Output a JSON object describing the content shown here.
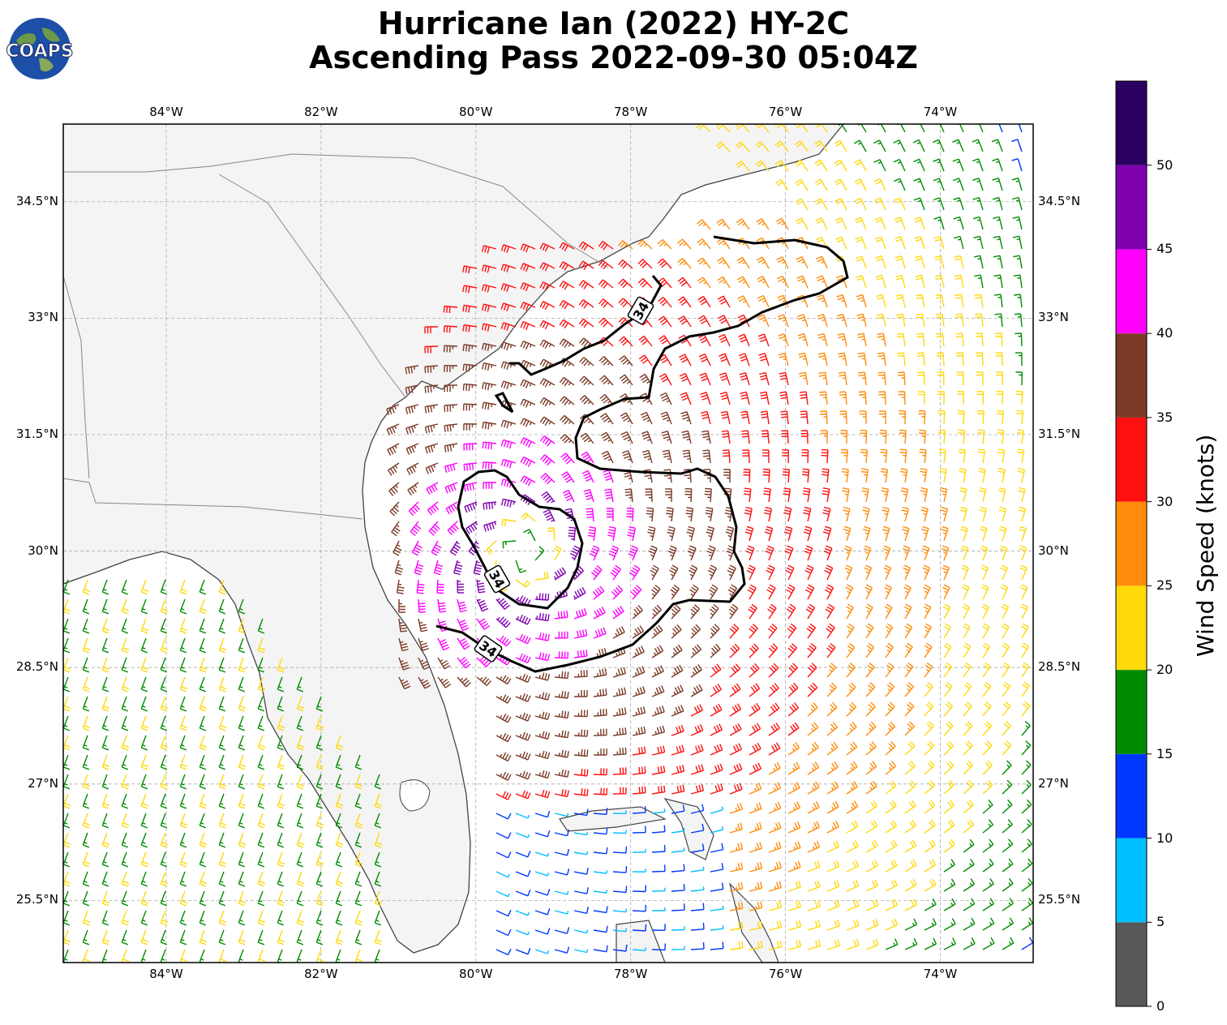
{
  "header": {
    "title_line1": "Hurricane Ian (2022) HY-2C",
    "title_line2": "Ascending Pass 2022-09-30 05:04Z",
    "logo_text": "COAPS",
    "logo_icon": "globe-icon"
  },
  "map": {
    "lon_range": [
      -85.33,
      -72.8
    ],
    "lat_range": [
      24.7,
      35.5
    ],
    "lon_ticks": [
      "84°W",
      "82°W",
      "80°W",
      "78°W",
      "76°W",
      "74°W"
    ],
    "lon_values": [
      -84,
      -82,
      -80,
      -78,
      -76,
      -74
    ],
    "lat_ticks": [
      "34.5°N",
      "33°N",
      "31.5°N",
      "30°N",
      "28.5°N",
      "27°N",
      "25.5°N"
    ],
    "lat_values": [
      34.5,
      33,
      31.5,
      30,
      28.5,
      27,
      25.5
    ],
    "gridlines": true,
    "land_color": "#f4f4f4",
    "ocean_color": "#ffffff",
    "coast_color": "#444444",
    "border_color": "#888888",
    "contour": {
      "level_label": "34",
      "color": "#000000",
      "labels": [
        "34",
        "34",
        "34"
      ]
    },
    "storm_center": {
      "lon": -79.4,
      "lat": 29.95
    }
  },
  "colorbar": {
    "label": "Wind Speed (knots)",
    "tick_labels": [
      "0",
      "5",
      "10",
      "15",
      "20",
      "25",
      "30",
      "35",
      "40",
      "45",
      "50"
    ],
    "bins": [
      {
        "from": 0,
        "to": 5,
        "color": "#585858"
      },
      {
        "from": 5,
        "to": 10,
        "color": "#00bfff"
      },
      {
        "from": 10,
        "to": 15,
        "color": "#0038ff"
      },
      {
        "from": 15,
        "to": 20,
        "color": "#008c00"
      },
      {
        "from": 20,
        "to": 25,
        "color": "#ffd90a"
      },
      {
        "from": 25,
        "to": 30,
        "color": "#ff8c0a"
      },
      {
        "from": 30,
        "to": 35,
        "color": "#ff0f0f"
      },
      {
        "from": 35,
        "to": 40,
        "color": "#7b3a26"
      },
      {
        "from": 40,
        "to": 45,
        "color": "#ff00ff"
      },
      {
        "from": 45,
        "to": 50,
        "color": "#8000b0"
      },
      {
        "from": 50,
        "to": 55,
        "color": "#2a0060"
      }
    ]
  }
}
